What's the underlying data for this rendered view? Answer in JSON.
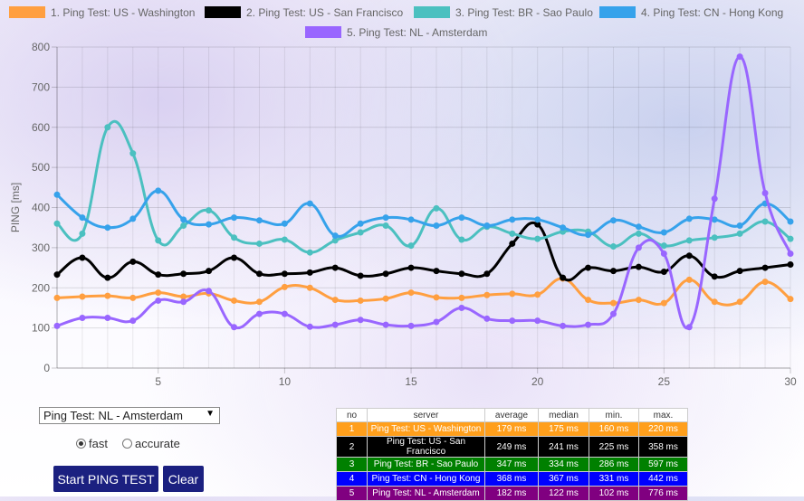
{
  "legend": [
    {
      "label": "1. Ping Test: US - Washington",
      "color": "#ff9f40"
    },
    {
      "label": "2. Ping Test: US - San Francisco",
      "color": "#000000"
    },
    {
      "label": "3. Ping Test: BR - Sao Paulo",
      "color": "#4bc0c0"
    },
    {
      "label": "4. Ping Test: CN - Hong Kong",
      "color": "#36a2eb"
    },
    {
      "label": "5. Ping Test: NL - Amsterdam",
      "color": "#9966ff"
    }
  ],
  "chart_data": {
    "type": "line",
    "ylabel": "PING [ms]",
    "xlabel": "",
    "ylim": [
      0,
      800
    ],
    "xlim": [
      1,
      30
    ],
    "y_ticks": [
      "0",
      "100",
      "200",
      "300",
      "400",
      "500",
      "600",
      "700",
      "800"
    ],
    "x_ticks": [
      "5",
      "10",
      "15",
      "20",
      "25",
      "30"
    ],
    "grid": true,
    "legend_position": "top",
    "x": [
      1,
      2,
      3,
      4,
      5,
      6,
      7,
      8,
      9,
      10,
      11,
      12,
      13,
      14,
      15,
      16,
      17,
      18,
      19,
      20,
      21,
      22,
      23,
      24,
      25,
      26,
      27,
      28,
      29,
      30
    ],
    "series": [
      {
        "name": "1. Ping Test: US - Washington",
        "color": "#ff9f40",
        "values": [
          175,
          178,
          180,
          175,
          188,
          178,
          186,
          168,
          165,
          202,
          200,
          170,
          168,
          173,
          188,
          176,
          175,
          182,
          185,
          183,
          223,
          170,
          162,
          170,
          162,
          220,
          165,
          165,
          215,
          172
        ]
      },
      {
        "name": "2. Ping Test: US - San Francisco",
        "color": "#000000",
        "values": [
          233,
          275,
          225,
          265,
          233,
          235,
          242,
          275,
          235,
          235,
          238,
          250,
          230,
          235,
          250,
          242,
          235,
          235,
          310,
          358,
          225,
          250,
          242,
          252,
          240,
          280,
          228,
          242,
          250,
          258
        ]
      },
      {
        "name": "3. Ping Test: BR - Sao Paulo",
        "color": "#4bc0c0",
        "values": [
          360,
          335,
          600,
          535,
          318,
          355,
          393,
          325,
          310,
          320,
          288,
          318,
          338,
          355,
          305,
          398,
          320,
          352,
          335,
          322,
          340,
          340,
          303,
          335,
          305,
          318,
          325,
          335,
          365,
          322
        ]
      },
      {
        "name": "4. Ping Test: CN - Hong Kong",
        "color": "#36a2eb",
        "values": [
          432,
          375,
          350,
          372,
          442,
          370,
          358,
          375,
          368,
          360,
          410,
          330,
          360,
          375,
          370,
          355,
          375,
          355,
          370,
          370,
          350,
          332,
          368,
          352,
          338,
          372,
          370,
          355,
          410,
          365
        ]
      },
      {
        "name": "5. Ping Test: NL - Amsterdam",
        "color": "#9966ff",
        "values": [
          105,
          125,
          125,
          118,
          168,
          165,
          192,
          102,
          135,
          135,
          103,
          108,
          120,
          108,
          105,
          115,
          150,
          123,
          118,
          118,
          105,
          108,
          135,
          300,
          285,
          102,
          422,
          776,
          436,
          285
        ]
      }
    ]
  },
  "controls": {
    "select_value": "Ping Test: NL - Amsterdam",
    "radio_fast": "fast",
    "radio_accurate": "accurate",
    "start_button": "Start PING TEST",
    "clear_button": "Clear"
  },
  "stats_table": {
    "headers": [
      "no",
      "server",
      "average",
      "median",
      "min.",
      "max."
    ],
    "rows": [
      {
        "cells": [
          "1",
          "Ping Test: US - Washington",
          "179 ms",
          "175 ms",
          "160 ms",
          "220 ms"
        ],
        "bg": "#ff9f1c"
      },
      {
        "cells": [
          "2",
          "Ping Test: US - San Francisco",
          "249 ms",
          "241 ms",
          "225 ms",
          "358 ms"
        ],
        "bg": "#000000"
      },
      {
        "cells": [
          "3",
          "Ping Test: BR - Sao Paulo",
          "347 ms",
          "334 ms",
          "286 ms",
          "597 ms"
        ],
        "bg": "#008000"
      },
      {
        "cells": [
          "4",
          "Ping Test: CN - Hong Kong",
          "368 ms",
          "367 ms",
          "331 ms",
          "442 ms"
        ],
        "bg": "#0000ff"
      },
      {
        "cells": [
          "5",
          "Ping Test: NL - Amsterdam",
          "182 ms",
          "122 ms",
          "102 ms",
          "776 ms"
        ],
        "bg": "#800080"
      }
    ]
  }
}
